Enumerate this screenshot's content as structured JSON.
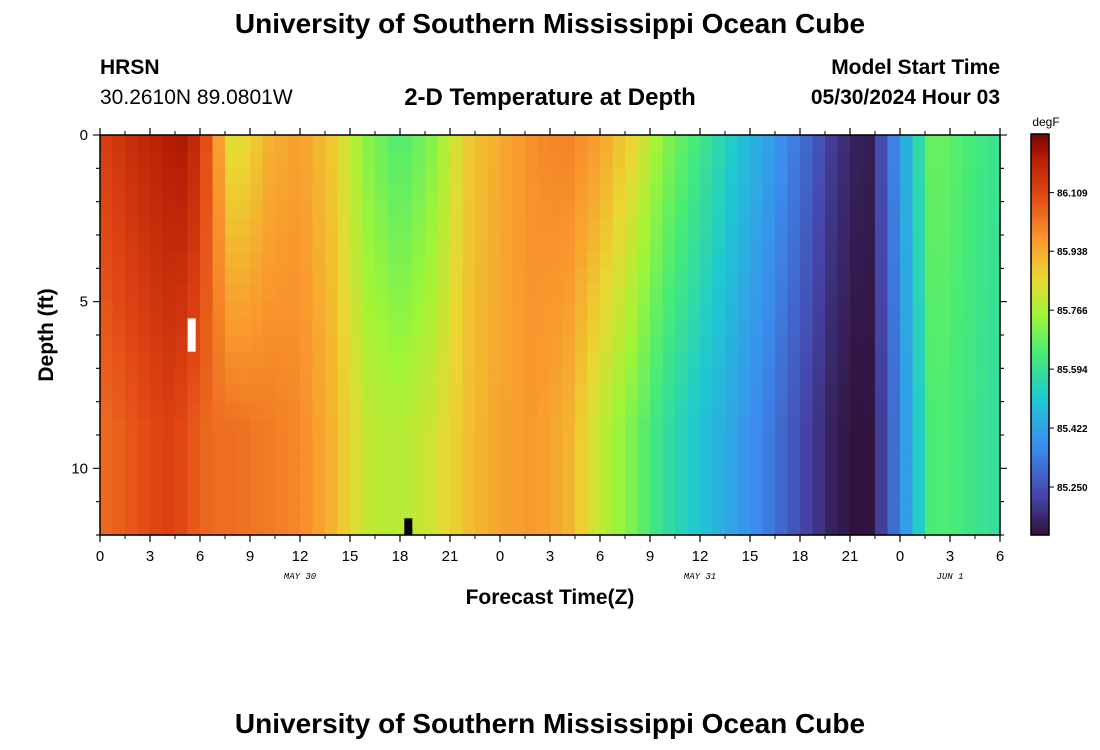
{
  "header": {
    "title": "University of Southern Mississippi Ocean Cube",
    "station": "HRSN",
    "latlon": "30.2610N  89.0801W",
    "subtitle": "2-D Temperature at Depth",
    "model_start_label": "Model Start Time",
    "model_start_value": "05/30/2024 Hour 03"
  },
  "footer": {
    "title": "University of Southern Mississippi Ocean Cube"
  },
  "chart_data": {
    "type": "heatmap",
    "title": "2-D Temperature at Depth",
    "xlabel": "Forecast Time(Z)",
    "ylabel": "Depth (ft)",
    "xlim": [
      0,
      54
    ],
    "ylim": [
      0,
      12
    ],
    "x_ticks": [
      "0",
      "3",
      "6",
      "9",
      "12",
      "15",
      "18",
      "21",
      "0",
      "3",
      "6",
      "9",
      "12",
      "15",
      "18",
      "21",
      "0",
      "3",
      "6"
    ],
    "y_ticks": [
      "0",
      "5",
      "10"
    ],
    "date_labels": [
      {
        "text": "MAY 30",
        "hour": 12
      },
      {
        "text": "MAY 31",
        "hour": 36
      },
      {
        "text": "JUN 1",
        "hour": 51
      }
    ],
    "colorbar": {
      "unit": "degF",
      "range": [
        85.11,
        86.28
      ],
      "ticks": [
        "86.109",
        "85.938",
        "85.766",
        "85.594",
        "85.422",
        "85.250"
      ],
      "tick_values": [
        86.109,
        85.938,
        85.766,
        85.594,
        85.422,
        85.25
      ]
    },
    "surface_profile": {
      "hours": [
        0,
        2,
        4,
        5,
        6,
        7,
        8,
        9,
        10,
        12,
        14,
        16,
        18,
        20,
        22,
        24,
        26,
        28,
        30,
        32,
        34,
        36,
        38,
        40,
        42,
        44,
        46,
        48,
        50,
        52,
        54
      ],
      "temps": [
        86.12,
        86.17,
        86.21,
        86.22,
        86.16,
        85.98,
        85.82,
        85.86,
        85.92,
        85.96,
        85.88,
        85.72,
        85.64,
        85.72,
        85.88,
        85.94,
        85.99,
        86.01,
        85.96,
        85.86,
        85.72,
        85.62,
        85.52,
        85.42,
        85.32,
        85.2,
        85.12,
        85.4,
        85.7,
        85.64,
        85.6
      ]
    },
    "depth_profile": {
      "hours": [
        0,
        2,
        4,
        5,
        6,
        7,
        8,
        9,
        10,
        12,
        14,
        16,
        18,
        20,
        22,
        24,
        26,
        28,
        30,
        32,
        34,
        36,
        38,
        40,
        42,
        44,
        46,
        48,
        50,
        52,
        54
      ],
      "temps": [
        86.04,
        86.08,
        86.12,
        86.1,
        86.06,
        86.04,
        86.04,
        86.03,
        86.02,
        86.0,
        85.92,
        85.8,
        85.78,
        85.82,
        85.9,
        85.95,
        85.97,
        85.93,
        85.8,
        85.7,
        85.58,
        85.5,
        85.42,
        85.34,
        85.24,
        85.14,
        85.1,
        85.35,
        85.66,
        85.62,
        85.58
      ]
    },
    "markers": [
      {
        "kind": "white-bar",
        "hour": 5.5,
        "depth_from": 5.5,
        "depth_to": 6.5
      },
      {
        "kind": "black-bar",
        "hour": 18.5,
        "depth_from": 11.5,
        "depth_to": 12
      }
    ]
  }
}
